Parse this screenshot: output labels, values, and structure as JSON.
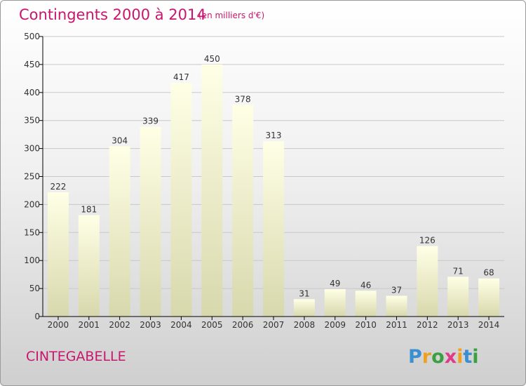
{
  "header": {
    "title": "Contingents 2000 à 2014",
    "unit": "(en milliers d'€)"
  },
  "footer": {
    "place": "CINTEGABELLE",
    "brand": {
      "letters": [
        "P",
        "r",
        "o",
        "x",
        "i",
        "t",
        "i"
      ],
      "colors": [
        "#3a8fd1",
        "#f0a020",
        "#3aa040",
        "#e03a8a",
        "#f0a020",
        "#3a8fd1",
        "#3aa040"
      ]
    }
  },
  "colors": {
    "title": "#c8166e",
    "bar_top": "#ffffe6",
    "bar_bottom": "#d8d8ad",
    "axis": "#000000",
    "grid": "#c8c8c8"
  },
  "chart_data": {
    "type": "bar",
    "categories": [
      "2000",
      "2001",
      "2002",
      "2003",
      "2004",
      "2005",
      "2006",
      "2007",
      "2008",
      "2009",
      "2010",
      "2011",
      "2012",
      "2013",
      "2014"
    ],
    "values": [
      222,
      181,
      304,
      339,
      417,
      450,
      378,
      313,
      31,
      49,
      46,
      37,
      126,
      71,
      68
    ],
    "yticks": [
      0,
      50,
      100,
      150,
      200,
      250,
      300,
      350,
      400,
      450,
      500
    ],
    "ylim": [
      0,
      500
    ],
    "grid": true
  }
}
